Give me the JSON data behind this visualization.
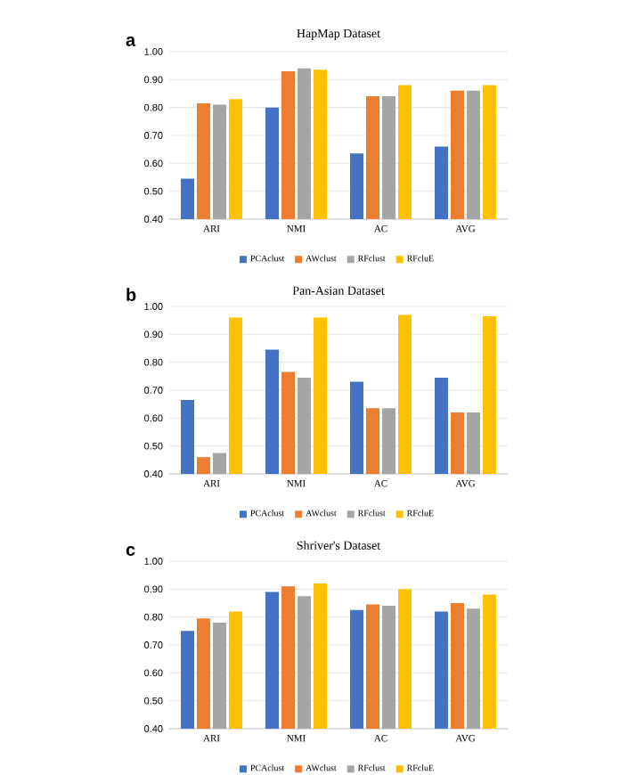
{
  "chart_data": [
    {
      "type": "bar",
      "title": "HapMap Dataset",
      "annotations": [
        "a"
      ],
      "categories": [
        "ARI",
        "NMI",
        "AC",
        "AVG"
      ],
      "series": [
        {
          "name": "PCAclust",
          "color": "#4472c4",
          "values": [
            0.545,
            0.8,
            0.635,
            0.66
          ]
        },
        {
          "name": "AWclust",
          "color": "#ed7d31",
          "values": [
            0.815,
            0.93,
            0.84,
            0.86
          ]
        },
        {
          "name": "RFclust",
          "color": "#a5a5a5",
          "values": [
            0.81,
            0.94,
            0.84,
            0.86
          ]
        },
        {
          "name": "RFcluE",
          "color": "#ffc000",
          "values": [
            0.83,
            0.935,
            0.88,
            0.88
          ]
        }
      ],
      "ylim": [
        0.4,
        1.0
      ],
      "yticks": [
        {
          "value": 0.4,
          "label": "0.40"
        },
        {
          "value": 0.5,
          "label": "0.50"
        },
        {
          "value": 0.6,
          "label": "0.60"
        },
        {
          "value": 0.7,
          "label": "0.70"
        },
        {
          "value": 0.8,
          "label": "0.80"
        },
        {
          "value": 0.9,
          "label": "0.90"
        },
        {
          "value": 1.0,
          "label": "1.00"
        }
      ],
      "grid": "y",
      "legend": "bottom"
    },
    {
      "type": "bar",
      "title": "Pan-Asian Dataset",
      "annotations": [
        "b"
      ],
      "categories": [
        "ARI",
        "NMI",
        "AC",
        "AVG"
      ],
      "series": [
        {
          "name": "PCAclust",
          "color": "#4472c4",
          "values": [
            0.665,
            0.845,
            0.73,
            0.745
          ]
        },
        {
          "name": "AWclust",
          "color": "#ed7d31",
          "values": [
            0.46,
            0.765,
            0.635,
            0.62
          ]
        },
        {
          "name": "RFclust",
          "color": "#a5a5a5",
          "values": [
            0.475,
            0.745,
            0.635,
            0.62
          ]
        },
        {
          "name": "RFcluE",
          "color": "#ffc000",
          "values": [
            0.96,
            0.96,
            0.97,
            0.965
          ]
        }
      ],
      "ylim": [
        0.4,
        1.0
      ],
      "yticks": [
        {
          "value": 0.4,
          "label": "0.40"
        },
        {
          "value": 0.5,
          "label": "0.50"
        },
        {
          "value": 0.6,
          "label": "0.60"
        },
        {
          "value": 0.7,
          "label": "0.70"
        },
        {
          "value": 0.8,
          "label": "0.80"
        },
        {
          "value": 0.9,
          "label": "0.90"
        },
        {
          "value": 1.0,
          "label": "1.00"
        }
      ],
      "grid": "y",
      "legend": "bottom"
    },
    {
      "type": "bar",
      "title": "Shriver's Dataset",
      "annotations": [
        "c"
      ],
      "categories": [
        "ARI",
        "NMI",
        "AC",
        "AVG"
      ],
      "series": [
        {
          "name": "PCAclust",
          "color": "#4472c4",
          "values": [
            0.75,
            0.89,
            0.825,
            0.82
          ]
        },
        {
          "name": "AWclust",
          "color": "#ed7d31",
          "values": [
            0.795,
            0.91,
            0.845,
            0.85
          ]
        },
        {
          "name": "RFclust",
          "color": "#a5a5a5",
          "values": [
            0.78,
            0.875,
            0.84,
            0.83
          ]
        },
        {
          "name": "RFcluE",
          "color": "#ffc000",
          "values": [
            0.82,
            0.92,
            0.9,
            0.88
          ]
        }
      ],
      "ylim": [
        0.4,
        1.0
      ],
      "yticks": [
        {
          "value": 0.4,
          "label": "0.40"
        },
        {
          "value": 0.5,
          "label": "0.50"
        },
        {
          "value": 0.6,
          "label": "0.60"
        },
        {
          "value": 0.7,
          "label": "0.70"
        },
        {
          "value": 0.8,
          "label": "0.80"
        },
        {
          "value": 0.9,
          "label": "0.90"
        },
        {
          "value": 1.0,
          "label": "1.00"
        }
      ],
      "grid": "y",
      "legend": "bottom"
    }
  ]
}
